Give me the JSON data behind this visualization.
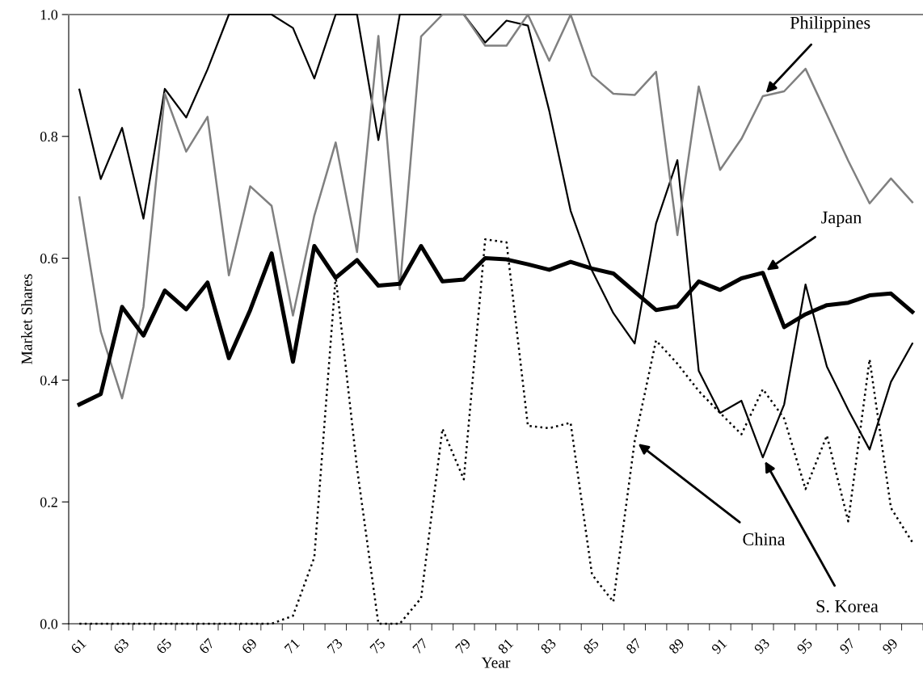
{
  "chart_data": {
    "type": "line",
    "xlabel": "Year",
    "ylabel": "Market Shares",
    "categories": [
      "61",
      null,
      "63",
      null,
      "65",
      null,
      "67",
      null,
      "69",
      null,
      "71",
      null,
      "73",
      null,
      "75",
      null,
      "77",
      null,
      "79",
      null,
      "81",
      null,
      "83",
      null,
      "85",
      null,
      "87",
      null,
      "89",
      null,
      "91",
      null,
      "93",
      null,
      "95",
      null,
      "97",
      null,
      "99",
      null
    ],
    "series": [
      {
        "color": "#000000",
        "line_style": "solid",
        "values": [
          0.36,
          0.377,
          0.52,
          0.473,
          0.547,
          0.516,
          0.56,
          0.436,
          0.515,
          0.608,
          0.43,
          0.62,
          0.568,
          0.597,
          0.555,
          0.558,
          0.62,
          0.562,
          0.565,
          0.6,
          0.598,
          0.59,
          0.581,
          0.594,
          0.583,
          0.575,
          0.545,
          0.515,
          0.521,
          0.562,
          0.548,
          0.567,
          0.576,
          0.487,
          0.508,
          0.523,
          0.527,
          0.539,
          0.542,
          0.512
        ]
      },
      {
        "color": "#000000",
        "line_style": "solid",
        "values": [
          0.877,
          0.73,
          0.814,
          0.665,
          0.878,
          0.831,
          0.91,
          1.0,
          1.0,
          1.0,
          0.978,
          0.895,
          1.0,
          1.0,
          0.794,
          1.0,
          1.0,
          1.0,
          1.0,
          0.954,
          0.99,
          0.982,
          0.842,
          0.678,
          0.58,
          0.51,
          0.46,
          0.657,
          0.761,
          0.415,
          0.346,
          0.366,
          0.273,
          0.36,
          0.557,
          0.422,
          0.351,
          0.286,
          0.397,
          0.46
        ]
      },
      {
        "color": "#808080",
        "line_style": "solid",
        "values": [
          0.7,
          0.48,
          0.37,
          0.52,
          0.87,
          0.775,
          0.832,
          0.572,
          0.718,
          0.686,
          0.506,
          0.67,
          0.79,
          0.61,
          0.965,
          0.549,
          0.964,
          1.0,
          1.0,
          0.949,
          0.949,
          1.0,
          0.924,
          1.0,
          0.9,
          0.87,
          0.868,
          0.906,
          0.638,
          0.882,
          0.745,
          0.796,
          0.866,
          0.874,
          0.911,
          0.836,
          0.76,
          0.69,
          0.731,
          0.692
        ]
      },
      {
        "color": "#000000",
        "line_style": "dotted",
        "values": [
          0,
          0,
          0,
          0,
          0,
          0,
          0,
          0,
          0,
          0,
          0.013,
          0.109,
          0.57,
          0.256,
          0.0,
          0.0,
          0.042,
          0.32,
          0.237,
          0.631,
          0.626,
          0.325,
          0.321,
          0.33,
          0.081,
          0.036,
          0.3,
          0.465,
          0.427,
          0.382,
          0.346,
          0.311,
          0.385,
          0.337,
          0.221,
          0.309,
          0.168,
          0.434,
          0.19,
          0.134
        ]
      }
    ],
    "annotations": [
      {
        "text": "Philippines",
        "x": "93",
        "y": 0.866
      },
      {
        "text": "Japan",
        "x": "93",
        "y": 0.576
      },
      {
        "text": "China",
        "x": "87",
        "y": 0.3
      },
      {
        "text": "S. Korea",
        "x": "93",
        "y": 0.273
      }
    ],
    "ylim": [
      0,
      1
    ],
    "yticks": [
      {
        "value": 0,
        "label": "0.0"
      },
      {
        "value": 0.2,
        "label": "0.2"
      },
      {
        "value": 0.4,
        "label": "0.4"
      },
      {
        "value": 0.6,
        "label": "0.6"
      },
      {
        "value": 0.8,
        "label": "0.8"
      },
      {
        "value": 1,
        "label": "1.0"
      }
    ],
    "grid": false,
    "legend": false,
    "marker": "none"
  }
}
